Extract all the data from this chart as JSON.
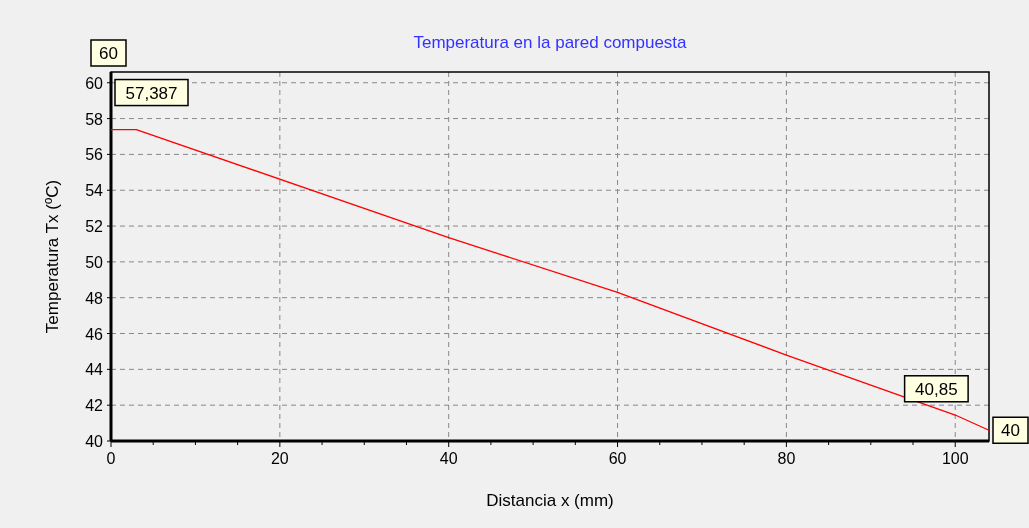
{
  "chart_data": {
    "type": "line",
    "title": "Temperatura en la pared compuesta",
    "xlabel": "Distancia x (mm)",
    "ylabel": "Temperatura Tx (ºC)",
    "series": [
      {
        "color": "#ff0000",
        "x": [
          0,
          3,
          40,
          60,
          80,
          100,
          104
        ],
        "values": [
          57.387,
          57.387,
          51.35,
          48.3,
          44.8,
          41.45,
          40.6
        ]
      }
    ],
    "xlim": [
      0,
      104
    ],
    "xticks": [
      0,
      {
        "value": 5,
        "label": null
      },
      {
        "value": 10,
        "label": null
      },
      {
        "value": 15,
        "label": null
      },
      20,
      {
        "value": 25,
        "label": null
      },
      {
        "value": 30,
        "label": null
      },
      {
        "value": 35,
        "label": null
      },
      40,
      {
        "value": 45,
        "label": null
      },
      {
        "value": 50,
        "label": null
      },
      {
        "value": 55,
        "label": null
      },
      60,
      {
        "value": 65,
        "label": null
      },
      {
        "value": 70,
        "label": null
      },
      {
        "value": 75,
        "label": null
      },
      80,
      {
        "value": 85,
        "label": null
      },
      {
        "value": 90,
        "label": null
      },
      {
        "value": 95,
        "label": null
      },
      100
    ],
    "ylim": [
      40,
      60.6
    ],
    "yticks": [
      40,
      42,
      44,
      46,
      48,
      50,
      52,
      54,
      56,
      58,
      60
    ],
    "grid": true,
    "marker": "none",
    "line_style": "solid",
    "annotations": [
      "60",
      {
        "text": "57,387",
        "x": 0,
        "y": 57.387
      },
      {
        "text": "40,85",
        "x": 102,
        "y": 40.85
      },
      {
        "text": "40",
        "x": 104,
        "y": 40.6
      }
    ]
  }
}
